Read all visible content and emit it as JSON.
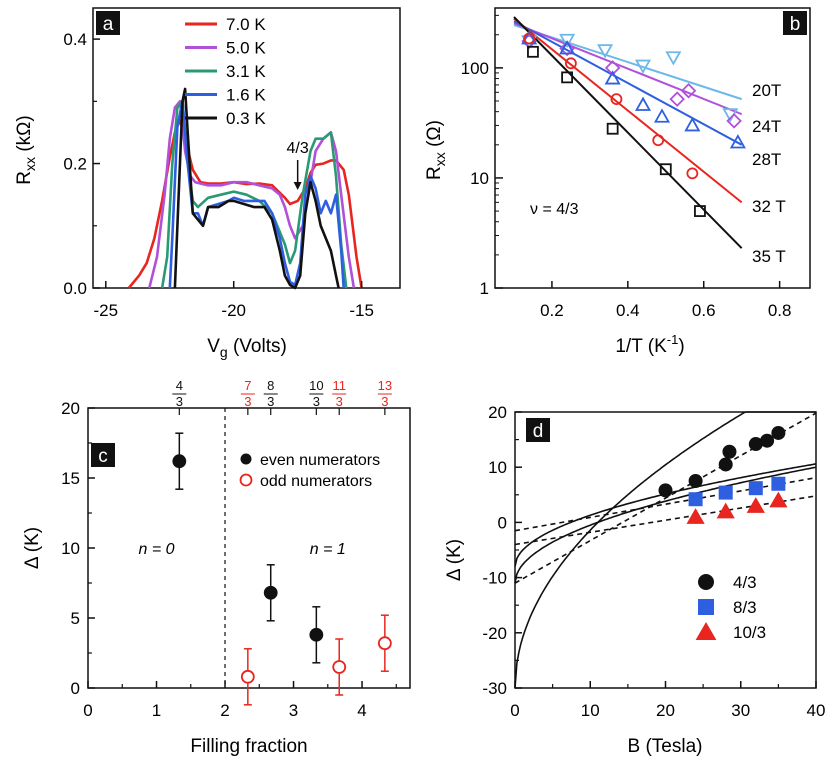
{
  "chart_data": [
    {
      "panel": "a",
      "type": "line",
      "xlabel_main": "V",
      "xlabel_sub": "g",
      "xlabel_rest": " (Volts)",
      "ylabel_main": "R",
      "ylabel_sub": "xx",
      "ylabel_rest": " (kΩ)",
      "xlim": [
        -25.5,
        -13.5
      ],
      "ylim": [
        0,
        0.45
      ],
      "xticks": [
        -25,
        -20,
        -15
      ],
      "yticks": [
        0.0,
        0.2,
        0.4
      ],
      "ytick_labels": [
        "0.0",
        "0.2",
        "0.4"
      ],
      "annotation": "4/3",
      "annotation_arrow_x": -17.5,
      "legend": [
        "7.0 K",
        "5.0 K",
        "3.1 K",
        "1.6 K",
        "0.3 K"
      ],
      "series": [
        {
          "name": "7.0 K",
          "color": "#e8261f",
          "x": [
            -24.1,
            -23.7,
            -23.4,
            -23.1,
            -22.8,
            -22.5,
            -22.3,
            -22.1,
            -21.9,
            -21.6,
            -21.3,
            -21.0,
            -20.5,
            -20.0,
            -19.5,
            -19.0,
            -18.5,
            -18.0,
            -17.8,
            -17.5,
            -17.2,
            -17.0,
            -16.8,
            -16.5,
            -16.2,
            -16.0,
            -15.7,
            -15.5,
            -15.2,
            -15.0
          ],
          "y": [
            0.0,
            0.02,
            0.04,
            0.08,
            0.14,
            0.21,
            0.25,
            0.27,
            0.24,
            0.19,
            0.17,
            0.168,
            0.168,
            0.17,
            0.167,
            0.168,
            0.165,
            0.145,
            0.135,
            0.14,
            0.16,
            0.185,
            0.198,
            0.2,
            0.205,
            0.205,
            0.19,
            0.15,
            0.05,
            0.0
          ]
        },
        {
          "name": "5.0 K",
          "color": "#b150d8",
          "x": [
            -23.3,
            -23.0,
            -22.7,
            -22.5,
            -22.3,
            -22.1,
            -21.9,
            -21.7,
            -21.5,
            -21.3,
            -21.0,
            -20.5,
            -20.0,
            -19.5,
            -19.0,
            -18.5,
            -18.2,
            -18.0,
            -17.8,
            -17.6,
            -17.3,
            -17.0,
            -16.8,
            -16.5,
            -16.2,
            -16.0,
            -15.8,
            -15.5,
            -15.3
          ],
          "y": [
            0.0,
            0.05,
            0.15,
            0.24,
            0.29,
            0.3,
            0.22,
            0.18,
            0.17,
            0.168,
            0.165,
            0.165,
            0.17,
            0.17,
            0.165,
            0.16,
            0.15,
            0.13,
            0.1,
            0.08,
            0.1,
            0.17,
            0.22,
            0.24,
            0.25,
            0.22,
            0.15,
            0.05,
            0.0
          ]
        },
        {
          "name": "3.1 K",
          "color": "#2a9a74",
          "x": [
            -22.8,
            -22.6,
            -22.4,
            -22.2,
            -22.0,
            -21.8,
            -21.6,
            -21.4,
            -21.0,
            -20.5,
            -20.0,
            -19.5,
            -19.0,
            -18.5,
            -18.0,
            -17.8,
            -17.6,
            -17.3,
            -17.0,
            -16.8,
            -16.5,
            -16.2,
            -16.0,
            -15.8,
            -15.6
          ],
          "y": [
            0.0,
            0.05,
            0.2,
            0.29,
            0.3,
            0.2,
            0.14,
            0.13,
            0.145,
            0.15,
            0.155,
            0.15,
            0.14,
            0.12,
            0.07,
            0.04,
            0.06,
            0.15,
            0.22,
            0.24,
            0.24,
            0.25,
            0.18,
            0.07,
            0.0
          ]
        },
        {
          "name": "1.6 K",
          "color": "#2e5fe0",
          "x": [
            -22.5,
            -22.4,
            -22.2,
            -22.0,
            -21.8,
            -21.6,
            -21.4,
            -21.2,
            -21.0,
            -20.6,
            -20.2,
            -20.0,
            -19.6,
            -19.2,
            -18.8,
            -18.5,
            -18.2,
            -18.0,
            -17.8,
            -17.6,
            -17.4,
            -17.2,
            -17.0,
            -16.8,
            -16.6,
            -16.4,
            -16.2,
            -16.0,
            -15.8,
            -15.7
          ],
          "y": [
            0.0,
            0.08,
            0.26,
            0.3,
            0.2,
            0.12,
            0.12,
            0.1,
            0.13,
            0.135,
            0.14,
            0.145,
            0.14,
            0.14,
            0.14,
            0.12,
            0.08,
            0.04,
            0.01,
            0.005,
            0.04,
            0.15,
            0.18,
            0.16,
            0.12,
            0.14,
            0.12,
            0.15,
            0.06,
            0.0
          ]
        },
        {
          "name": "0.3 K",
          "color": "#111111",
          "x": [
            -22.3,
            -22.2,
            -22.0,
            -21.9,
            -21.8,
            -21.6,
            -21.4,
            -21.2,
            -21.0,
            -20.6,
            -20.2,
            -20.0,
            -19.6,
            -19.2,
            -18.8,
            -18.5,
            -18.2,
            -18.0,
            -17.8,
            -17.6,
            -17.4,
            -17.2,
            -17.0,
            -16.8,
            -16.6,
            -16.4,
            -16.2,
            -16.0,
            -15.9
          ],
          "y": [
            0.0,
            0.1,
            0.3,
            0.32,
            0.25,
            0.12,
            0.11,
            0.1,
            0.13,
            0.13,
            0.14,
            0.14,
            0.135,
            0.13,
            0.13,
            0.11,
            0.06,
            0.02,
            0.005,
            0.0,
            0.02,
            0.12,
            0.17,
            0.14,
            0.1,
            0.08,
            0.06,
            0.02,
            0.0
          ]
        }
      ]
    },
    {
      "panel": "b",
      "type": "scatter",
      "yscale": "log",
      "xlabel": "1/T (K",
      "xlabel_sup": "-1",
      "xlabel_end": ")",
      "ylabel_main": "R",
      "ylabel_sub": "xx",
      "ylabel_rest": " (Ω)",
      "xlim": [
        0.05,
        0.88
      ],
      "ylim": [
        1,
        350
      ],
      "xticks": [
        0.2,
        0.4,
        0.6,
        0.8
      ],
      "yticks": [
        1,
        10,
        100
      ],
      "annotation": "ν = 4/3",
      "series": [
        {
          "name": "20T",
          "color": "#6cb8e8",
          "marker": "triangle-down",
          "x": [
            0.14,
            0.24,
            0.34,
            0.44,
            0.52,
            0.67
          ],
          "y": [
            175,
            180,
            145,
            105,
            125,
            38
          ],
          "fit": [
            [
              0.1,
              245
            ],
            [
              0.7,
              52
            ]
          ]
        },
        {
          "name": "24T",
          "color": "#b150d8",
          "marker": "diamond",
          "x": [
            0.14,
            0.24,
            0.36,
            0.53,
            0.56,
            0.68
          ],
          "y": [
            175,
            150,
            100,
            52,
            62,
            33
          ],
          "fit": [
            [
              0.1,
              255
            ],
            [
              0.7,
              38
            ]
          ]
        },
        {
          "name": "28T",
          "color": "#2e5fe0",
          "marker": "triangle-up",
          "x": [
            0.14,
            0.24,
            0.36,
            0.44,
            0.49,
            0.57,
            0.69
          ],
          "y": [
            185,
            150,
            80,
            46,
            36,
            30,
            21
          ],
          "fit": [
            [
              0.1,
              265
            ],
            [
              0.7,
              20
            ]
          ]
        },
        {
          "name": "32 T",
          "color": "#e8261f",
          "marker": "circle",
          "x": [
            0.14,
            0.25,
            0.37,
            0.48,
            0.57
          ],
          "y": [
            185,
            110,
            52,
            22,
            11
          ],
          "fit": [
            [
              0.1,
              280
            ],
            [
              0.7,
              6
            ]
          ]
        },
        {
          "name": "35 T",
          "color": "#111111",
          "marker": "square",
          "x": [
            0.15,
            0.24,
            0.36,
            0.5,
            0.59
          ],
          "y": [
            140,
            82,
            28,
            12,
            5
          ],
          "fit": [
            [
              0.1,
              290
            ],
            [
              0.7,
              2.3
            ]
          ]
        }
      ]
    },
    {
      "panel": "c",
      "type": "scatter",
      "xlabel": "Filling fraction",
      "ylabel": "Δ (K)",
      "xlim": [
        0,
        4.7
      ],
      "ylim": [
        0,
        20
      ],
      "xticks": [
        0,
        1,
        2,
        3,
        4
      ],
      "yticks": [
        0,
        5,
        10,
        15,
        20
      ],
      "dashed_vline_x": 2,
      "region_labels": [
        {
          "text": "n = 0",
          "x": 1.0,
          "y": 10
        },
        {
          "text": "n = 1",
          "x": 3.5,
          "y": 10
        }
      ],
      "top_fractions": [
        {
          "num": "4",
          "den": "3",
          "x": 1.333,
          "color": "#111111"
        },
        {
          "num": "7",
          "den": "3",
          "x": 2.333,
          "color": "#e8261f"
        },
        {
          "num": "8",
          "den": "3",
          "x": 2.667,
          "color": "#111111"
        },
        {
          "num": "10",
          "den": "3",
          "x": 3.333,
          "color": "#111111"
        },
        {
          "num": "11",
          "den": "3",
          "x": 3.667,
          "color": "#e8261f"
        },
        {
          "num": "13",
          "den": "3",
          "x": 4.333,
          "color": "#e8261f"
        }
      ],
      "legend": [
        "even numerators",
        "odd numerators"
      ],
      "series": [
        {
          "name": "even numerators",
          "color": "#111111",
          "marker": "filled-circle",
          "x": [
            1.333,
            2.667,
            3.333
          ],
          "y": [
            16.2,
            6.8,
            3.8
          ],
          "err": [
            2.0,
            2.0,
            2.0
          ]
        },
        {
          "name": "odd numerators",
          "color": "#e8261f",
          "marker": "open-circle",
          "x": [
            2.333,
            3.667,
            4.333
          ],
          "y": [
            0.8,
            1.5,
            3.2
          ],
          "err": [
            2.0,
            2.0,
            2.0
          ]
        }
      ]
    },
    {
      "panel": "d",
      "type": "scatter",
      "xlabel": "B (Tesla)",
      "ylabel": "Δ (K)",
      "xlim": [
        0,
        40
      ],
      "ylim": [
        -30,
        20
      ],
      "xticks": [
        0,
        10,
        20,
        30,
        40
      ],
      "yticks": [
        -30,
        -20,
        -10,
        0,
        10,
        20
      ],
      "legend": [
        "4/3",
        "8/3",
        "10/3"
      ],
      "series": [
        {
          "name": "4/3",
          "color": "#111111",
          "marker": "circle",
          "x": [
            20,
            24,
            28,
            28.5,
            32,
            33.5,
            35
          ],
          "y": [
            5.8,
            7.5,
            10.5,
            12.8,
            14.2,
            14.8,
            16.2
          ]
        },
        {
          "name": "8/3",
          "color": "#2e5fe0",
          "marker": "square",
          "x": [
            24,
            28,
            32,
            35
          ],
          "y": [
            4.2,
            5.4,
            6.2,
            7.0
          ]
        },
        {
          "name": "10/3",
          "color": "#e8261f",
          "marker": "triangle-up",
          "x": [
            24,
            28,
            32,
            35
          ],
          "y": [
            1.0,
            2.0,
            3.0,
            4.0
          ]
        }
      ],
      "fits_solid": [
        {
          "A": -30,
          "k": 9.04
        },
        {
          "A": -8,
          "k": 2.94
        },
        {
          "A": -11,
          "k": 3.32
        }
      ],
      "fits_dashed": [
        {
          "b0": -11,
          "slope": 0.77
        },
        {
          "b0": -1.5,
          "slope": 0.24
        },
        {
          "b0": -4,
          "slope": 0.22
        }
      ]
    }
  ],
  "panel_labels": [
    "a",
    "b",
    "c",
    "d"
  ]
}
